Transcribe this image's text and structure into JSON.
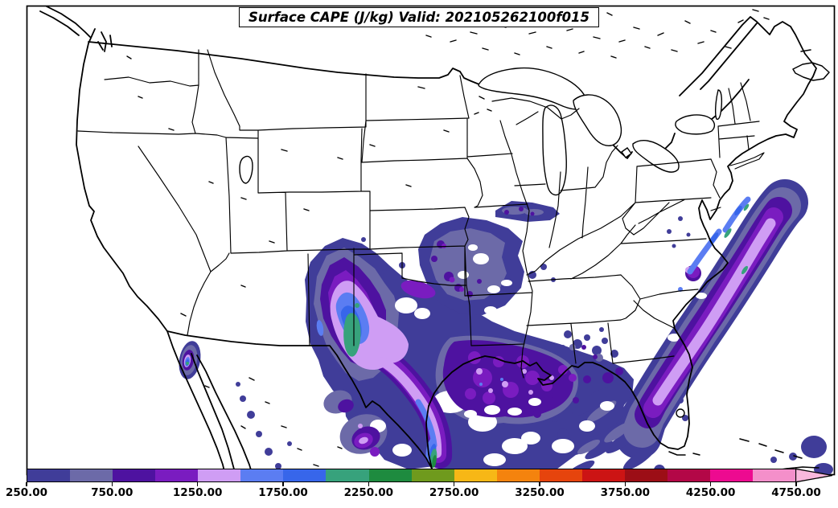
{
  "title": "Surface CAPE (J/kg) Valid: 202105262100f015",
  "colorbar": {
    "tick_labels": [
      "250.00",
      "750.00",
      "1250.00",
      "1750.00",
      "2250.00",
      "2750.00",
      "3250.00",
      "3750.00",
      "4250.00",
      "4750.00"
    ],
    "levels": [
      250,
      500,
      750,
      1000,
      1250,
      1500,
      1750,
      2000,
      2250,
      2500,
      2750,
      3000,
      3250,
      3500,
      3750,
      4000,
      4250,
      4500,
      4750
    ],
    "colors": [
      "#403d99",
      "#6c6aa8",
      "#4e12a0",
      "#7a1cc0",
      "#cf9df4",
      "#5b7df2",
      "#3766ea",
      "#37a27c",
      "#1e8b3f",
      "#6f9a1d",
      "#f7b716",
      "#f4830e",
      "#e6440d",
      "#cc1414",
      "#9c0e16",
      "#b30747",
      "#ed0a90",
      "#f48fca"
    ],
    "arrow_color": "#f9b8dc",
    "extend": "max",
    "orientation": "horizontal",
    "position": "bottom"
  },
  "chart_data": {
    "type": "heatmap",
    "subtype": "filled-contour weather map",
    "title": "Surface CAPE (J/kg) Valid: 202105262100f015",
    "variable": "Surface CAPE",
    "units": "J/kg",
    "valid_time": "202105262100f015",
    "region_shown": "Continental United States with southern Canada, northern Mexico, Gulf of Mexico and western Atlantic",
    "contour_levels": [
      250,
      500,
      750,
      1000,
      1250,
      1500,
      1750,
      2000,
      2250,
      2500,
      2750,
      3000,
      3250,
      3500,
      3750,
      4000,
      4250,
      4500,
      4750
    ],
    "palette": [
      "#403d99",
      "#6c6aa8",
      "#4e12a0",
      "#7a1cc0",
      "#cf9df4",
      "#5b7df2",
      "#3766ea",
      "#37a27c",
      "#1e8b3f",
      "#6f9a1d",
      "#f7b716",
      "#f4830e",
      "#e6440d",
      "#cc1414",
      "#9c0e16",
      "#b30747",
      "#ed0a90",
      "#f48fca"
    ],
    "legend_position": "bottom",
    "grid": false,
    "basemap": "US state boundaries, national borders, Great Lakes, coastlines in black on white",
    "regions": [
      {
        "name": "West Texas / eastern New Mexico maximum",
        "approx_range_jkg": [
          250,
          2250
        ],
        "core": "sea-green core ~2000-2250"
      },
      {
        "name": "Texas panhandle / western Oklahoma tongue",
        "approx_range_jkg": [
          250,
          1250
        ]
      },
      {
        "name": "Central/South Texas band to coast",
        "approx_range_jkg": [
          250,
          2500
        ],
        "core": "green core at lower Texas coast"
      },
      {
        "name": "East Texas / Louisiana / north-central Gulf",
        "approx_range_jkg": [
          250,
          1500
        ]
      },
      {
        "name": "Mississippi / Alabama / Georgia speckle",
        "approx_range_jkg": [
          250,
          1000
        ]
      },
      {
        "name": "Kansas / Missouri blob",
        "approx_range_jkg": [
          250,
          1250
        ]
      },
      {
        "name": "Iowa / Illinois blob",
        "approx_range_jkg": [
          250,
          1000
        ]
      },
      {
        "name": "Gulf Stream band off Southeast / Mid-Atlantic coast",
        "approx_range_jkg": [
          250,
          2250
        ],
        "core": "blue-green cores off Carolinas"
      },
      {
        "name": "Northern Mexico / Sierra Madre spots",
        "approx_range_jkg": [
          250,
          1500
        ]
      },
      {
        "name": "Baja California spot",
        "approx_range_jkg": [
          250,
          2250
        ]
      },
      {
        "name": "Florida east coast / Bahamas / Cuba area",
        "approx_range_jkg": [
          250,
          750
        ]
      }
    ]
  }
}
